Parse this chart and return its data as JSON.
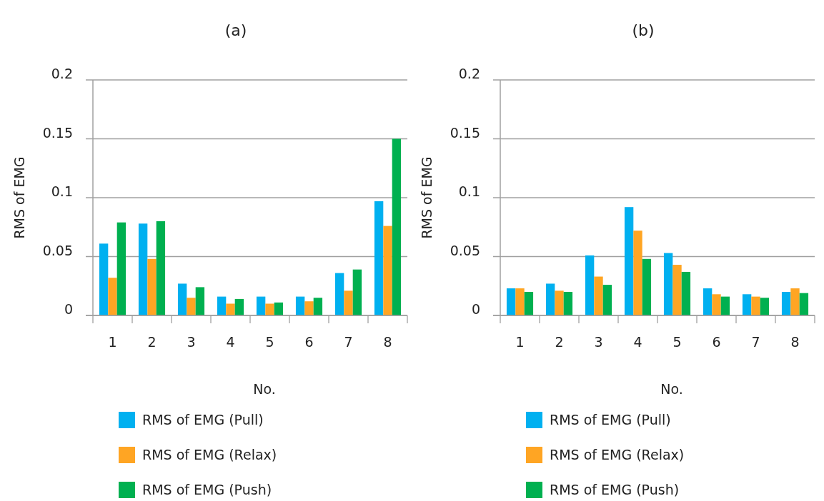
{
  "chart_data": [
    {
      "type": "bar",
      "title": "(a)",
      "xlabel": "No.",
      "ylabel": "RMS of EMG",
      "categories": [
        "1",
        "2",
        "3",
        "4",
        "5",
        "6",
        "7",
        "8"
      ],
      "series": [
        {
          "name": "RMS of EMG (Pull)",
          "color": "#00b0f0",
          "values": [
            0.061,
            0.078,
            0.027,
            0.016,
            0.016,
            0.016,
            0.036,
            0.097
          ]
        },
        {
          "name": "RMS of EMG (Relax)",
          "color": "#ffa523",
          "values": [
            0.032,
            0.048,
            0.015,
            0.01,
            0.01,
            0.012,
            0.021,
            0.076
          ]
        },
        {
          "name": "RMS of EMG (Push)",
          "color": "#00b050",
          "values": [
            0.079,
            0.08,
            0.024,
            0.014,
            0.011,
            0.015,
            0.039,
            0.15
          ]
        }
      ],
      "ylim": [
        0,
        0.2
      ],
      "yticks": [
        0,
        0.05,
        0.1,
        0.15,
        0.2
      ],
      "grid": "y",
      "legend": "bottom"
    },
    {
      "type": "bar",
      "title": "(b)",
      "xlabel": "No.",
      "ylabel": "RMS of EMG",
      "categories": [
        "1",
        "2",
        "3",
        "4",
        "5",
        "6",
        "7",
        "8"
      ],
      "series": [
        {
          "name": "RMS of EMG (Pull)",
          "color": "#00b0f0",
          "values": [
            0.023,
            0.027,
            0.051,
            0.092,
            0.053,
            0.023,
            0.018,
            0.02
          ]
        },
        {
          "name": "RMS of EMG (Relax)",
          "color": "#ffa523",
          "values": [
            0.023,
            0.021,
            0.033,
            0.072,
            0.043,
            0.018,
            0.016,
            0.023
          ]
        },
        {
          "name": "RMS of EMG (Push)",
          "color": "#00b050",
          "values": [
            0.02,
            0.02,
            0.026,
            0.048,
            0.037,
            0.016,
            0.015,
            0.019
          ]
        }
      ],
      "ylim": [
        0,
        0.2
      ],
      "yticks": [
        0,
        0.05,
        0.1,
        0.15,
        0.2
      ],
      "grid": "y",
      "legend": "bottom"
    }
  ]
}
